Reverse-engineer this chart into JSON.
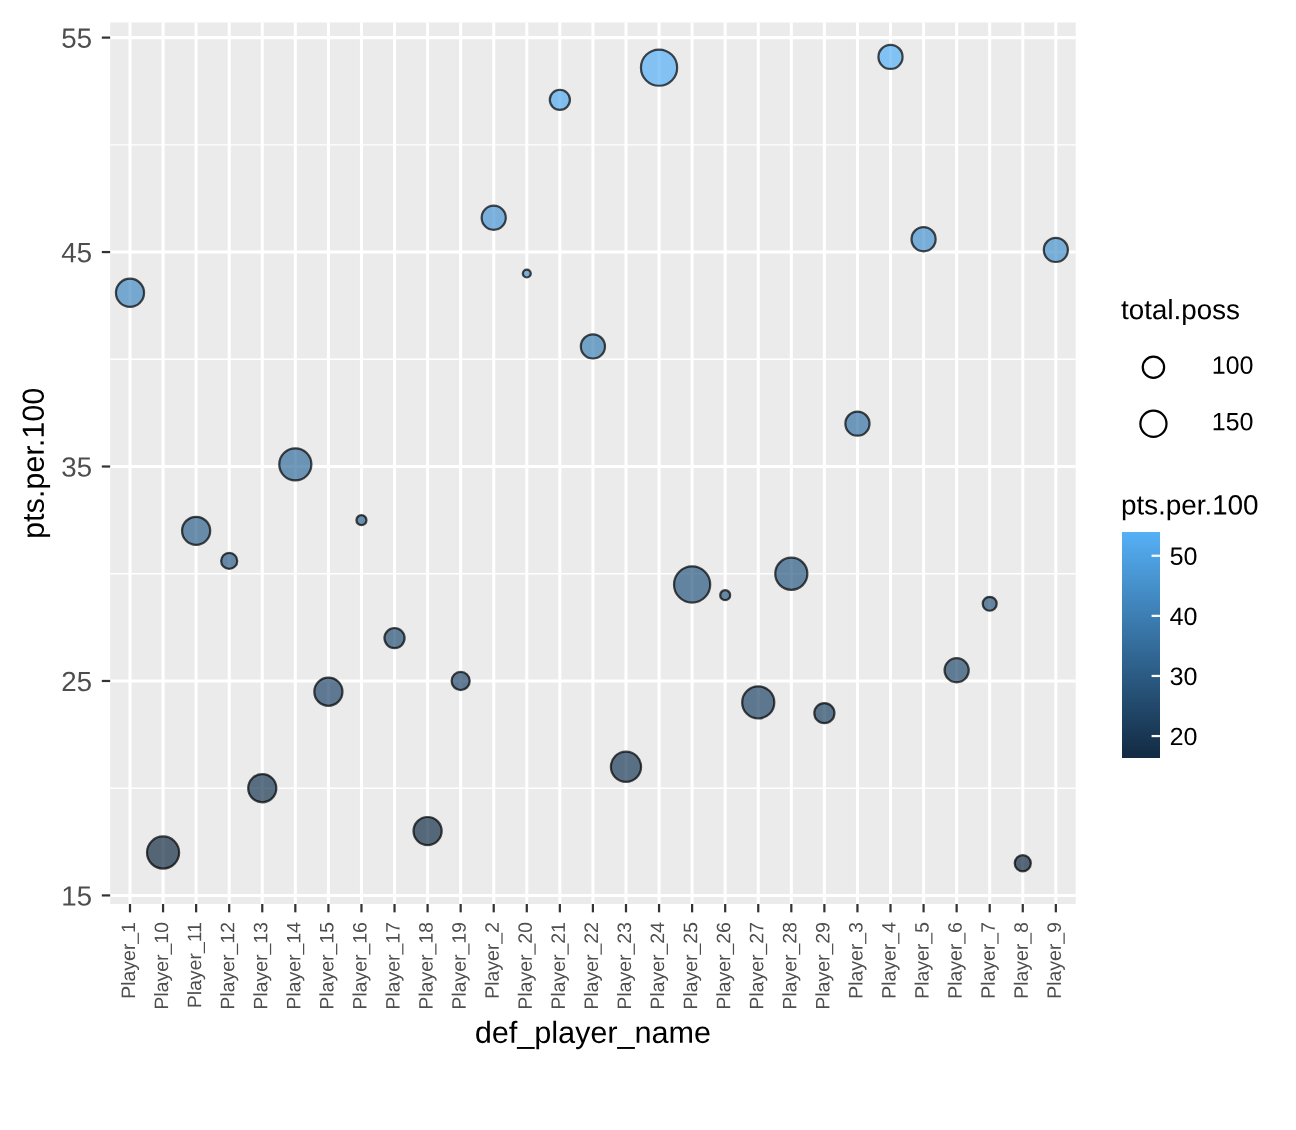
{
  "chart_data": {
    "type": "bubble",
    "xlabel": "def_player_name",
    "ylabel": "pts.per.100",
    "legend_title": "total.poss",
    "clabel": "pts.per.100",
    "categories": [
      "Player_1",
      "Player_10",
      "Player_11",
      "Player_12",
      "Player_13",
      "Player_14",
      "Player_15",
      "Player_16",
      "Player_17",
      "Player_18",
      "Player_19",
      "Player_2",
      "Player_20",
      "Player_21",
      "Player_22",
      "Player_23",
      "Player_24",
      "Player_25",
      "Player_26",
      "Player_27",
      "Player_28",
      "Player_29",
      "Player_3",
      "Player_4",
      "Player_5",
      "Player_6",
      "Player_7",
      "Player_8",
      "Player_9"
    ],
    "values": [
      43.1,
      17.0,
      32.0,
      30.6,
      20.0,
      35.1,
      24.5,
      32.5,
      27.0,
      18.0,
      25.0,
      46.6,
      44.0,
      52.1,
      40.6,
      21.0,
      53.6,
      29.5,
      29.0,
      24.0,
      30.0,
      23.5,
      37.0,
      54.1,
      45.6,
      25.5,
      28.6,
      16.5,
      45.1
    ],
    "cvalues": [
      43.1,
      17.0,
      32.0,
      30.6,
      20.0,
      35.1,
      24.5,
      32.5,
      27.0,
      18.0,
      25.0,
      46.6,
      44.0,
      52.1,
      40.6,
      21.0,
      53.6,
      29.5,
      29.0,
      24.0,
      30.0,
      23.5,
      37.0,
      54.1,
      45.6,
      25.5,
      28.6,
      16.5,
      45.1
    ],
    "sizes": [
      174,
      227,
      174,
      57,
      174,
      227,
      174,
      22,
      89,
      174,
      72,
      128,
      14,
      89,
      128,
      200,
      288,
      288,
      22,
      227,
      227,
      89,
      128,
      128,
      128,
      128,
      43,
      57,
      128
    ],
    "size_legend": [
      100,
      150
    ],
    "clim": [
      16.5,
      54.1
    ],
    "cticks": [
      20,
      30,
      40,
      50
    ],
    "ylim": [
      14.6,
      55.7
    ],
    "yticks": [
      15,
      25,
      35,
      45,
      55
    ],
    "grid": true
  }
}
